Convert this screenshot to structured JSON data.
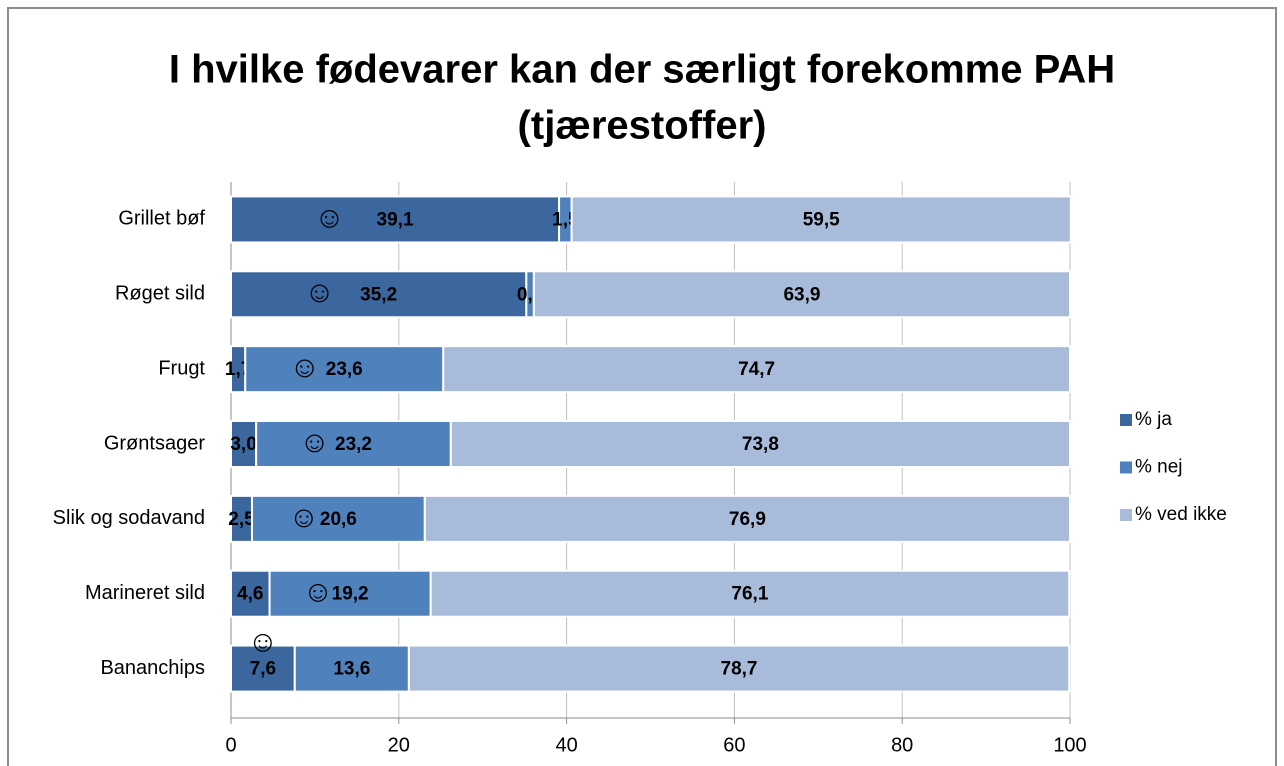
{
  "chart_data": {
    "type": "stacked-bar-horizontal",
    "title": [
      "I hvilke fødevarer kan der særligt forekomme PAH",
      "(tjærestoffer)"
    ],
    "categories": [
      "Grillet bøf",
      "Røget sild",
      "Frugt",
      "Grøntsager",
      "Slik og sodavand",
      "Marineret sild",
      "Bananchips"
    ],
    "series": [
      {
        "name": "% ja",
        "color": "#3b679e",
        "values": [
          39.1,
          35.2,
          1.7,
          3.0,
          2.5,
          4.6,
          7.6
        ],
        "value_labels": [
          "39,1",
          "35,2",
          "1,7",
          "3,0",
          "2,5",
          "4,6",
          "7,6"
        ]
      },
      {
        "name": "% nej",
        "color": "#4f81bd",
        "values": [
          1.5,
          0.9,
          23.6,
          23.2,
          20.6,
          19.2,
          13.6
        ],
        "value_labels": [
          "1,5",
          "0,9",
          "23,6",
          "23,2",
          "20,6",
          "19,2",
          "13,6"
        ]
      },
      {
        "name": "% ved ikke",
        "color": "#a9bbda",
        "values": [
          59.5,
          63.9,
          74.7,
          73.8,
          76.9,
          76.1,
          78.7
        ],
        "value_labels": [
          "59,5",
          "63,9",
          "74,7",
          "73,8",
          "76,9",
          "76,1",
          "78,7"
        ]
      }
    ],
    "annotations": [
      {
        "text": "☺",
        "category": "Grillet bøf",
        "series": "% ja"
      },
      {
        "text": "☺",
        "category": "Røget sild",
        "series": "% ja"
      },
      {
        "text": "☺",
        "category": "Frugt",
        "series": "% nej"
      },
      {
        "text": "☺",
        "category": "Grøntsager",
        "series": "% nej"
      },
      {
        "text": "☺",
        "category": "Slik og sodavand",
        "series": "% nej"
      },
      {
        "text": "☺",
        "category": "Marineret sild",
        "series": "% nej"
      },
      {
        "text": "☺",
        "category": "Bananchips",
        "series": "% ja"
      }
    ],
    "xlim": [
      0,
      100
    ],
    "xticks": [
      0,
      20,
      40,
      60,
      80,
      100
    ],
    "grid": true,
    "legend": "right"
  }
}
